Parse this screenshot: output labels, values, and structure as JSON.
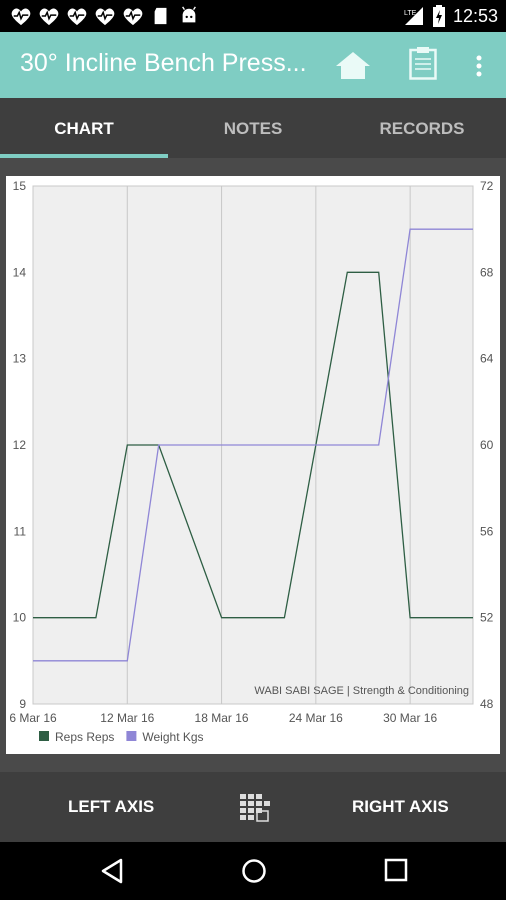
{
  "status_bar": {
    "time": "12:53",
    "network": "LTE",
    "left_icons": [
      "heart-pulse-icon",
      "heart-pulse-icon",
      "heart-pulse-icon",
      "heart-pulse-icon",
      "heart-pulse-icon",
      "sd-card-icon",
      "android-icon"
    ]
  },
  "app_bar": {
    "title": "30° Incline Bench Press...",
    "background_color": "#7fcdc3"
  },
  "tabs": [
    {
      "label": "CHART",
      "active": true
    },
    {
      "label": "NOTES",
      "active": false
    },
    {
      "label": "RECORDS",
      "active": false
    }
  ],
  "chart_data": {
    "type": "line",
    "x": [
      "6 Mar 16",
      "10 Mar 16",
      "12 Mar 16",
      "14 Mar 16",
      "18 Mar 16",
      "22 Mar 16",
      "26 Mar 16",
      "28 Mar 16",
      "30 Mar 16",
      "3 Apr 16"
    ],
    "x_tick_labels": [
      "6 Mar 16",
      "12 Mar 16",
      "18 Mar 16",
      "24 Mar 16",
      "30 Mar 16"
    ],
    "left_axis": {
      "range": [
        9,
        15
      ],
      "ticks": [
        "9",
        "10",
        "11",
        "12",
        "13",
        "14",
        "15"
      ]
    },
    "right_axis": {
      "range": [
        48,
        72
      ],
      "ticks": [
        "48",
        "52",
        "56",
        "60",
        "64",
        "68",
        "72"
      ]
    },
    "series": [
      {
        "name": "Reps Reps",
        "axis": "left",
        "color": "#2e5e44",
        "values": [
          10,
          10,
          12,
          12,
          10,
          10,
          14,
          14,
          10,
          10
        ]
      },
      {
        "name": "Weight Kgs",
        "axis": "right",
        "color": "#8f86d6",
        "values": [
          50,
          50,
          50,
          60,
          60,
          60,
          60,
          60,
          70,
          70
        ]
      }
    ],
    "watermark": "WABI SABI SAGE | Strength & Conditioning",
    "grid": true,
    "legend_placement": "bottom-left"
  },
  "bottom_bar": {
    "left_axis_label": "LEFT AXIS",
    "right_axis_label": "RIGHT AXIS"
  }
}
